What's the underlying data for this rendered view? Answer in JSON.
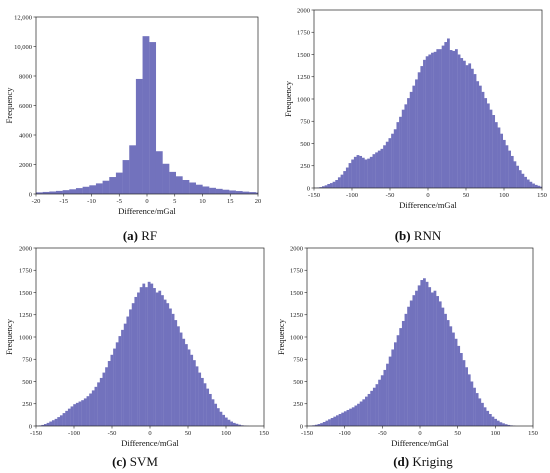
{
  "colors": {
    "bar": "#7272bd",
    "bar_edge": "#6464b0",
    "axis": "#222222"
  },
  "chart_data": [
    {
      "id": "a",
      "type": "bar",
      "caption": {
        "letter": "(a)",
        "name": "RF"
      },
      "xlabel": "Difference/mGal",
      "ylabel": "Frequency",
      "xlim": [
        -20,
        20
      ],
      "ylim": [
        0,
        12000
      ],
      "xticks": [
        -20,
        -15,
        -10,
        -5,
        0,
        5,
        10,
        15,
        20
      ],
      "yticks": [
        0,
        2000,
        4000,
        6000,
        8000,
        10000,
        12000
      ],
      "ytick_labels": [
        "0",
        "2000",
        "4000",
        "6000",
        "8000",
        "10,000",
        "12,000"
      ],
      "bin_start": -20,
      "bin_width": 1.2,
      "values": [
        110,
        140,
        170,
        210,
        260,
        320,
        400,
        490,
        590,
        720,
        900,
        1150,
        1450,
        2300,
        3300,
        7800,
        10700,
        10300,
        2900,
        2050,
        1500,
        1200,
        950,
        780,
        630,
        510,
        420,
        350,
        290,
        240,
        200,
        160,
        130,
        100
      ]
    },
    {
      "id": "b",
      "type": "bar",
      "caption": {
        "letter": "(b)",
        "name": "RNN"
      },
      "xlabel": "Difference/mGal",
      "ylabel": "Frequency",
      "xlim": [
        -150,
        150
      ],
      "ylim": [
        0,
        2000
      ],
      "xticks": [
        -150,
        -100,
        -50,
        0,
        50,
        100,
        150
      ],
      "yticks": [
        0,
        250,
        500,
        750,
        1000,
        1250,
        1500,
        1750,
        2000
      ],
      "ytick_labels": [
        "0",
        "250",
        "500",
        "750",
        "1000",
        "1250",
        "1500",
        "1750",
        "2000"
      ],
      "bin_start": -150,
      "bin_width": 3.5,
      "values": [
        2,
        5,
        10,
        20,
        30,
        45,
        55,
        70,
        90,
        120,
        150,
        190,
        230,
        280,
        320,
        350,
        370,
        360,
        340,
        320,
        330,
        350,
        380,
        400,
        420,
        440,
        480,
        520,
        560,
        610,
        660,
        740,
        800,
        880,
        940,
        1010,
        1080,
        1150,
        1220,
        1300,
        1370,
        1440,
        1480,
        1500,
        1520,
        1530,
        1560,
        1560,
        1600,
        1640,
        1680,
        1550,
        1540,
        1560,
        1500,
        1460,
        1430,
        1380,
        1400,
        1340,
        1280,
        1200,
        1150,
        1080,
        1010,
        950,
        880,
        820,
        740,
        680,
        610,
        540,
        480,
        420,
        360,
        300,
        250,
        200,
        160,
        125,
        95,
        70,
        50,
        35,
        25,
        15,
        5
      ]
    },
    {
      "id": "c",
      "type": "bar",
      "caption": {
        "letter": "(c)",
        "name": "SVM"
      },
      "xlabel": "Difference/mGal",
      "ylabel": "Frequency",
      "xlim": [
        -150,
        150
      ],
      "ylim": [
        0,
        2000
      ],
      "xticks": [
        -150,
        -100,
        -50,
        0,
        50,
        100,
        150
      ],
      "yticks": [
        0,
        250,
        500,
        750,
        1000,
        1250,
        1500,
        1750,
        2000
      ],
      "ytick_labels": [
        "0",
        "250",
        "500",
        "750",
        "1000",
        "1250",
        "1500",
        "1750",
        "2000"
      ],
      "bin_start": -150,
      "bin_width": 3.5,
      "values": [
        3,
        6,
        12,
        22,
        35,
        50,
        65,
        80,
        100,
        120,
        145,
        170,
        195,
        220,
        245,
        260,
        275,
        290,
        310,
        335,
        365,
        400,
        440,
        490,
        540,
        600,
        660,
        730,
        800,
        870,
        940,
        1010,
        1080,
        1150,
        1230,
        1310,
        1380,
        1450,
        1500,
        1560,
        1600,
        1560,
        1620,
        1600,
        1550,
        1500,
        1520,
        1470,
        1420,
        1380,
        1320,
        1260,
        1190,
        1120,
        1050,
        980,
        920,
        860,
        800,
        740,
        670,
        600,
        540,
        480,
        420,
        360,
        300,
        250,
        200,
        160,
        125,
        95,
        70,
        50,
        35,
        25,
        15,
        8,
        4,
        2
      ]
    },
    {
      "id": "d",
      "type": "bar",
      "caption": {
        "letter": "(d)",
        "name": "Kriging"
      },
      "xlabel": "Difference/mGal",
      "ylabel": "Frequency",
      "xlim": [
        -150,
        150
      ],
      "ylim": [
        0,
        2000
      ],
      "xticks": [
        -150,
        -100,
        -50,
        0,
        50,
        100,
        150
      ],
      "yticks": [
        0,
        250,
        500,
        750,
        1000,
        1250,
        1500,
        1750,
        2000
      ],
      "ytick_labels": [
        "0",
        "250",
        "500",
        "750",
        "1000",
        "1250",
        "1500",
        "1750",
        "2000"
      ],
      "bin_start": -150,
      "bin_width": 3.5,
      "values": [
        2,
        4,
        8,
        14,
        22,
        32,
        45,
        60,
        75,
        90,
        105,
        120,
        135,
        150,
        165,
        180,
        195,
        210,
        230,
        250,
        275,
        300,
        330,
        360,
        395,
        430,
        470,
        520,
        570,
        630,
        700,
        780,
        860,
        940,
        1020,
        1100,
        1180,
        1260,
        1340,
        1410,
        1470,
        1520,
        1580,
        1640,
        1660,
        1620,
        1560,
        1500,
        1520,
        1460,
        1400,
        1330,
        1260,
        1190,
        1120,
        1050,
        980,
        900,
        820,
        740,
        660,
        580,
        500,
        430,
        370,
        310,
        260,
        210,
        170,
        135,
        105,
        80,
        60,
        42,
        30,
        20,
        12,
        7,
        3
      ]
    }
  ]
}
